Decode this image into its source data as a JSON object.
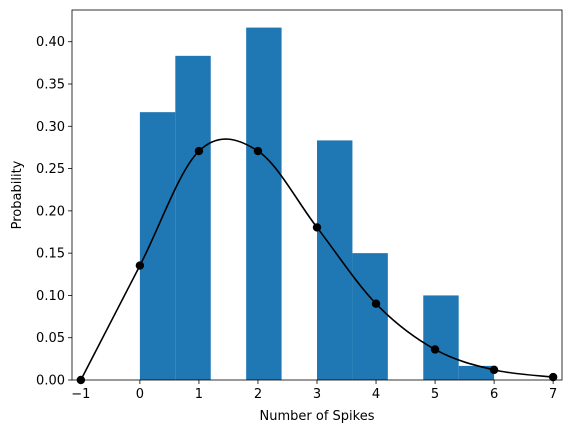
{
  "chart_data": {
    "type": "bar",
    "xlabel": "Number of Spikes",
    "ylabel": "Probability",
    "xlim": [
      -1.15,
      7.15
    ],
    "ylim": [
      0,
      0.4375
    ],
    "xticks": [
      -1,
      0,
      1,
      2,
      3,
      4,
      5,
      6,
      7
    ],
    "yticks": [
      0.0,
      0.05,
      0.1,
      0.15,
      0.2,
      0.25,
      0.3,
      0.35,
      0.4
    ],
    "ytick_labels": [
      "0.00",
      "0.05",
      "0.10",
      "0.15",
      "0.20",
      "0.25",
      "0.30",
      "0.35",
      "0.40"
    ],
    "histogram": {
      "color": "#1f77b4",
      "bins": [
        {
          "x0": 0.0,
          "x1": 0.6,
          "value": 0.3167
        },
        {
          "x0": 0.6,
          "x1": 1.2,
          "value": 0.3833
        },
        {
          "x0": 1.2,
          "x1": 1.8,
          "value": 0.0
        },
        {
          "x0": 1.8,
          "x1": 2.4,
          "value": 0.4167
        },
        {
          "x0": 2.4,
          "x1": 3.0,
          "value": 0.0
        },
        {
          "x0": 3.0,
          "x1": 3.6,
          "value": 0.2833
        },
        {
          "x0": 3.6,
          "x1": 4.2,
          "value": 0.15
        },
        {
          "x0": 4.2,
          "x1": 4.8,
          "value": 0.0
        },
        {
          "x0": 4.8,
          "x1": 5.4,
          "value": 0.1
        },
        {
          "x0": 5.4,
          "x1": 6.0,
          "value": 0.0167
        }
      ]
    },
    "points": {
      "color": "#000000",
      "x": [
        -1,
        0,
        1,
        2,
        3,
        4,
        5,
        6,
        7
      ],
      "y": [
        0.0,
        0.1353,
        0.2707,
        0.2707,
        0.1804,
        0.0902,
        0.0361,
        0.012,
        0.0034
      ]
    },
    "curve": {
      "color": "#000000",
      "interpolation": "smooth"
    }
  }
}
